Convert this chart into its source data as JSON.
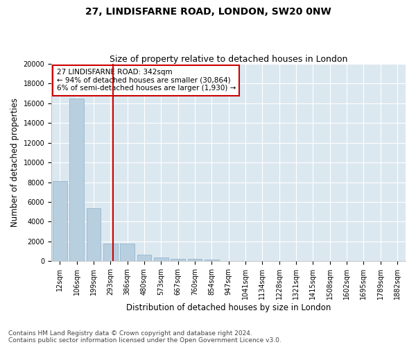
{
  "title": "27, LINDISFARNE ROAD, LONDON, SW20 0NW",
  "subtitle": "Size of property relative to detached houses in London",
  "xlabel": "Distribution of detached houses by size in London",
  "ylabel": "Number of detached properties",
  "bar_color": "#b8cfe0",
  "bar_edge_color": "#8aaec8",
  "bg_color": "#dce8f0",
  "grid_color": "#ffffff",
  "fig_bg_color": "#ffffff",
  "vline_color": "#cc0000",
  "annotation_text": "27 LINDISFARNE ROAD: 342sqm\n← 94% of detached houses are smaller (30,864)\n6% of semi-detached houses are larger (1,930) →",
  "annotation_box_color": "#ffffff",
  "annotation_border_color": "#cc0000",
  "categories": [
    "12sqm",
    "106sqm",
    "199sqm",
    "293sqm",
    "386sqm",
    "480sqm",
    "573sqm",
    "667sqm",
    "760sqm",
    "854sqm",
    "947sqm",
    "1041sqm",
    "1134sqm",
    "1228sqm",
    "1321sqm",
    "1415sqm",
    "1508sqm",
    "1602sqm",
    "1695sqm",
    "1789sqm",
    "1882sqm"
  ],
  "values": [
    8100,
    16500,
    5350,
    1800,
    1750,
    680,
    340,
    230,
    210,
    190,
    0,
    0,
    0,
    0,
    0,
    0,
    0,
    0,
    0,
    0,
    0
  ],
  "ylim": [
    0,
    20000
  ],
  "yticks": [
    0,
    2000,
    4000,
    6000,
    8000,
    10000,
    12000,
    14000,
    16000,
    18000,
    20000
  ],
  "footer": "Contains HM Land Registry data © Crown copyright and database right 2024.\nContains public sector information licensed under the Open Government Licence v3.0.",
  "title_fontsize": 10,
  "subtitle_fontsize": 9,
  "axis_label_fontsize": 8.5,
  "tick_fontsize": 7,
  "annotation_fontsize": 7.5,
  "footer_fontsize": 6.5
}
